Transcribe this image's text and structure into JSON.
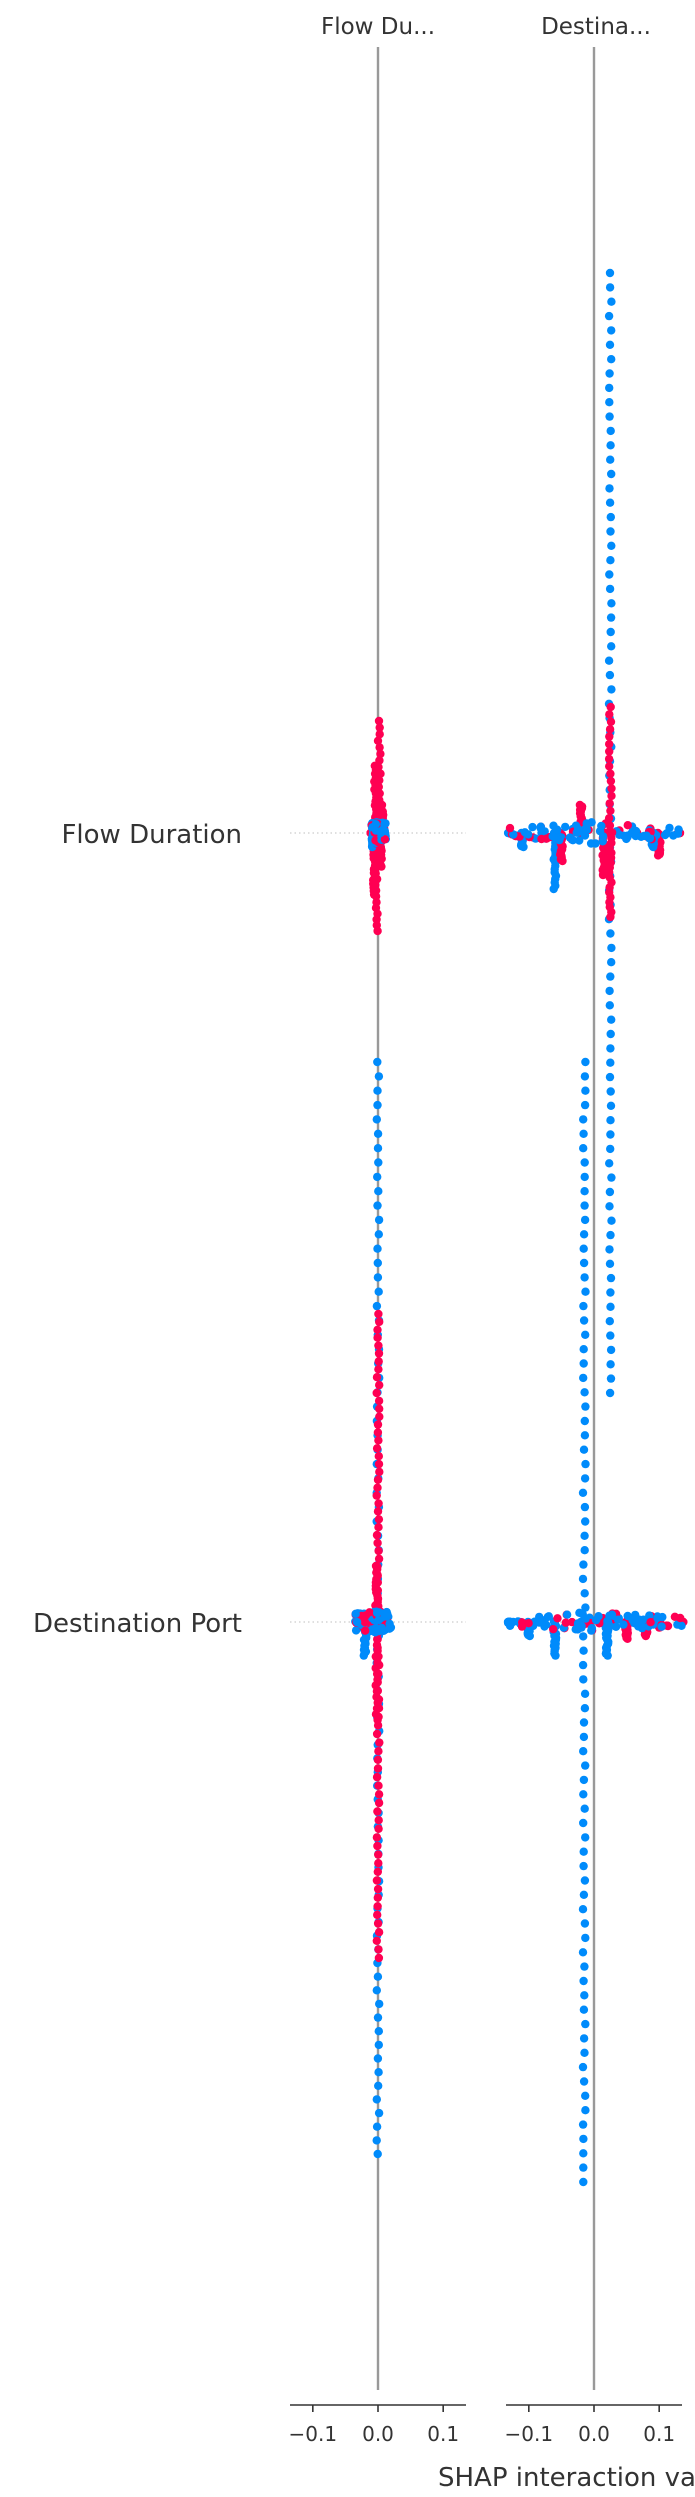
{
  "chart_data": {
    "type": "scatter",
    "title": "",
    "xlabel": "SHAP interaction va",
    "ylabel": "",
    "features": [
      "Flow Duration",
      "Destination Port"
    ],
    "panels": [
      {
        "title": "Flow Du...",
        "xlim": [
          -0.135,
          0.135
        ],
        "xticks": [
          -0.1,
          0.0,
          0.1
        ],
        "xtick_labels": [
          "−0.1",
          "0.0",
          "0.1"
        ],
        "rows": [
          {
            "feature": "Flow Duration",
            "points": [
              [
                -0.01,
                0,
                1
              ],
              [
                -0.006,
                0.22,
                1
              ],
              [
                -0.004,
                -0.24,
                1
              ],
              [
                -0.002,
                0.35,
                1
              ],
              [
                0.002,
                -0.4,
                1
              ],
              [
                0.004,
                0.12,
                1
              ],
              [
                0.006,
                -0.1,
                1
              ],
              [
                -0.008,
                0.05,
                0
              ]
            ],
            "min": -0.01,
            "max": 0.012,
            "spread_max": 1.0
          },
          {
            "feature": "Destination Port",
            "points": [
              [
                -0.03,
                0,
                0
              ],
              [
                -0.02,
                0.12,
                0
              ],
              [
                0.0,
                0.95,
                0
              ],
              [
                0.0,
                -1.0,
                0
              ],
              [
                -0.002,
                0.35,
                1
              ],
              [
                -0.002,
                -0.2,
                1
              ],
              [
                0.0,
                -0.55,
                1
              ],
              [
                0.0,
                0.6,
                1
              ]
            ],
            "min": -0.035,
            "max": 0.02,
            "spread_max": 1.0
          }
        ]
      },
      {
        "title": "Destina...",
        "xlim": [
          -0.135,
          0.135
        ],
        "xticks": [
          -0.1,
          0.0,
          0.1
        ],
        "xtick_labels": [
          "−0.1",
          "0.0",
          "0.1"
        ],
        "rows": [
          {
            "feature": "Flow Duration",
            "points": [
              [
                -0.13,
                0,
                0
              ],
              [
                -0.11,
                0.05,
                0
              ],
              [
                -0.06,
                0.2,
                0
              ],
              [
                0.025,
                1.0,
                0
              ],
              [
                0.025,
                -1.0,
                0
              ],
              [
                0.1,
                0.08,
                1
              ],
              [
                0.13,
                0,
                1
              ],
              [
                0.015,
                0.15,
                1
              ],
              [
                -0.02,
                -0.1,
                1
              ],
              [
                0.025,
                0.3,
                1
              ],
              [
                0.025,
                -0.45,
                1
              ],
              [
                -0.05,
                0.1,
                1
              ],
              [
                0.06,
                0,
                0
              ],
              [
                0.09,
                0.05,
                0
              ]
            ],
            "min": -0.13,
            "max": 0.13,
            "spread_max": 1.0
          },
          {
            "feature": "Destination Port",
            "points": [
              [
                -0.13,
                0,
                0
              ],
              [
                -0.1,
                0.05,
                0
              ],
              [
                -0.06,
                0.12,
                0
              ],
              [
                -0.015,
                1.0,
                0
              ],
              [
                -0.015,
                -1.0,
                0
              ],
              [
                0.02,
                0.12,
                0
              ],
              [
                0.05,
                0.06,
                1
              ],
              [
                0.08,
                0.05,
                1
              ],
              [
                0.1,
                0.02,
                1
              ],
              [
                0.135,
                0,
                1
              ],
              [
                0.03,
                -0.03,
                1
              ],
              [
                -0.02,
                0.02,
                0
              ]
            ],
            "min": -0.135,
            "max": 0.135,
            "spread_max": 1.0
          }
        ]
      }
    ],
    "colors": {
      "low": "#008bfb",
      "high": "#ff0052",
      "zero_line": "#999999",
      "row_line": "#cccccc",
      "axis": "#333333"
    },
    "grid": false,
    "legend": "none"
  }
}
